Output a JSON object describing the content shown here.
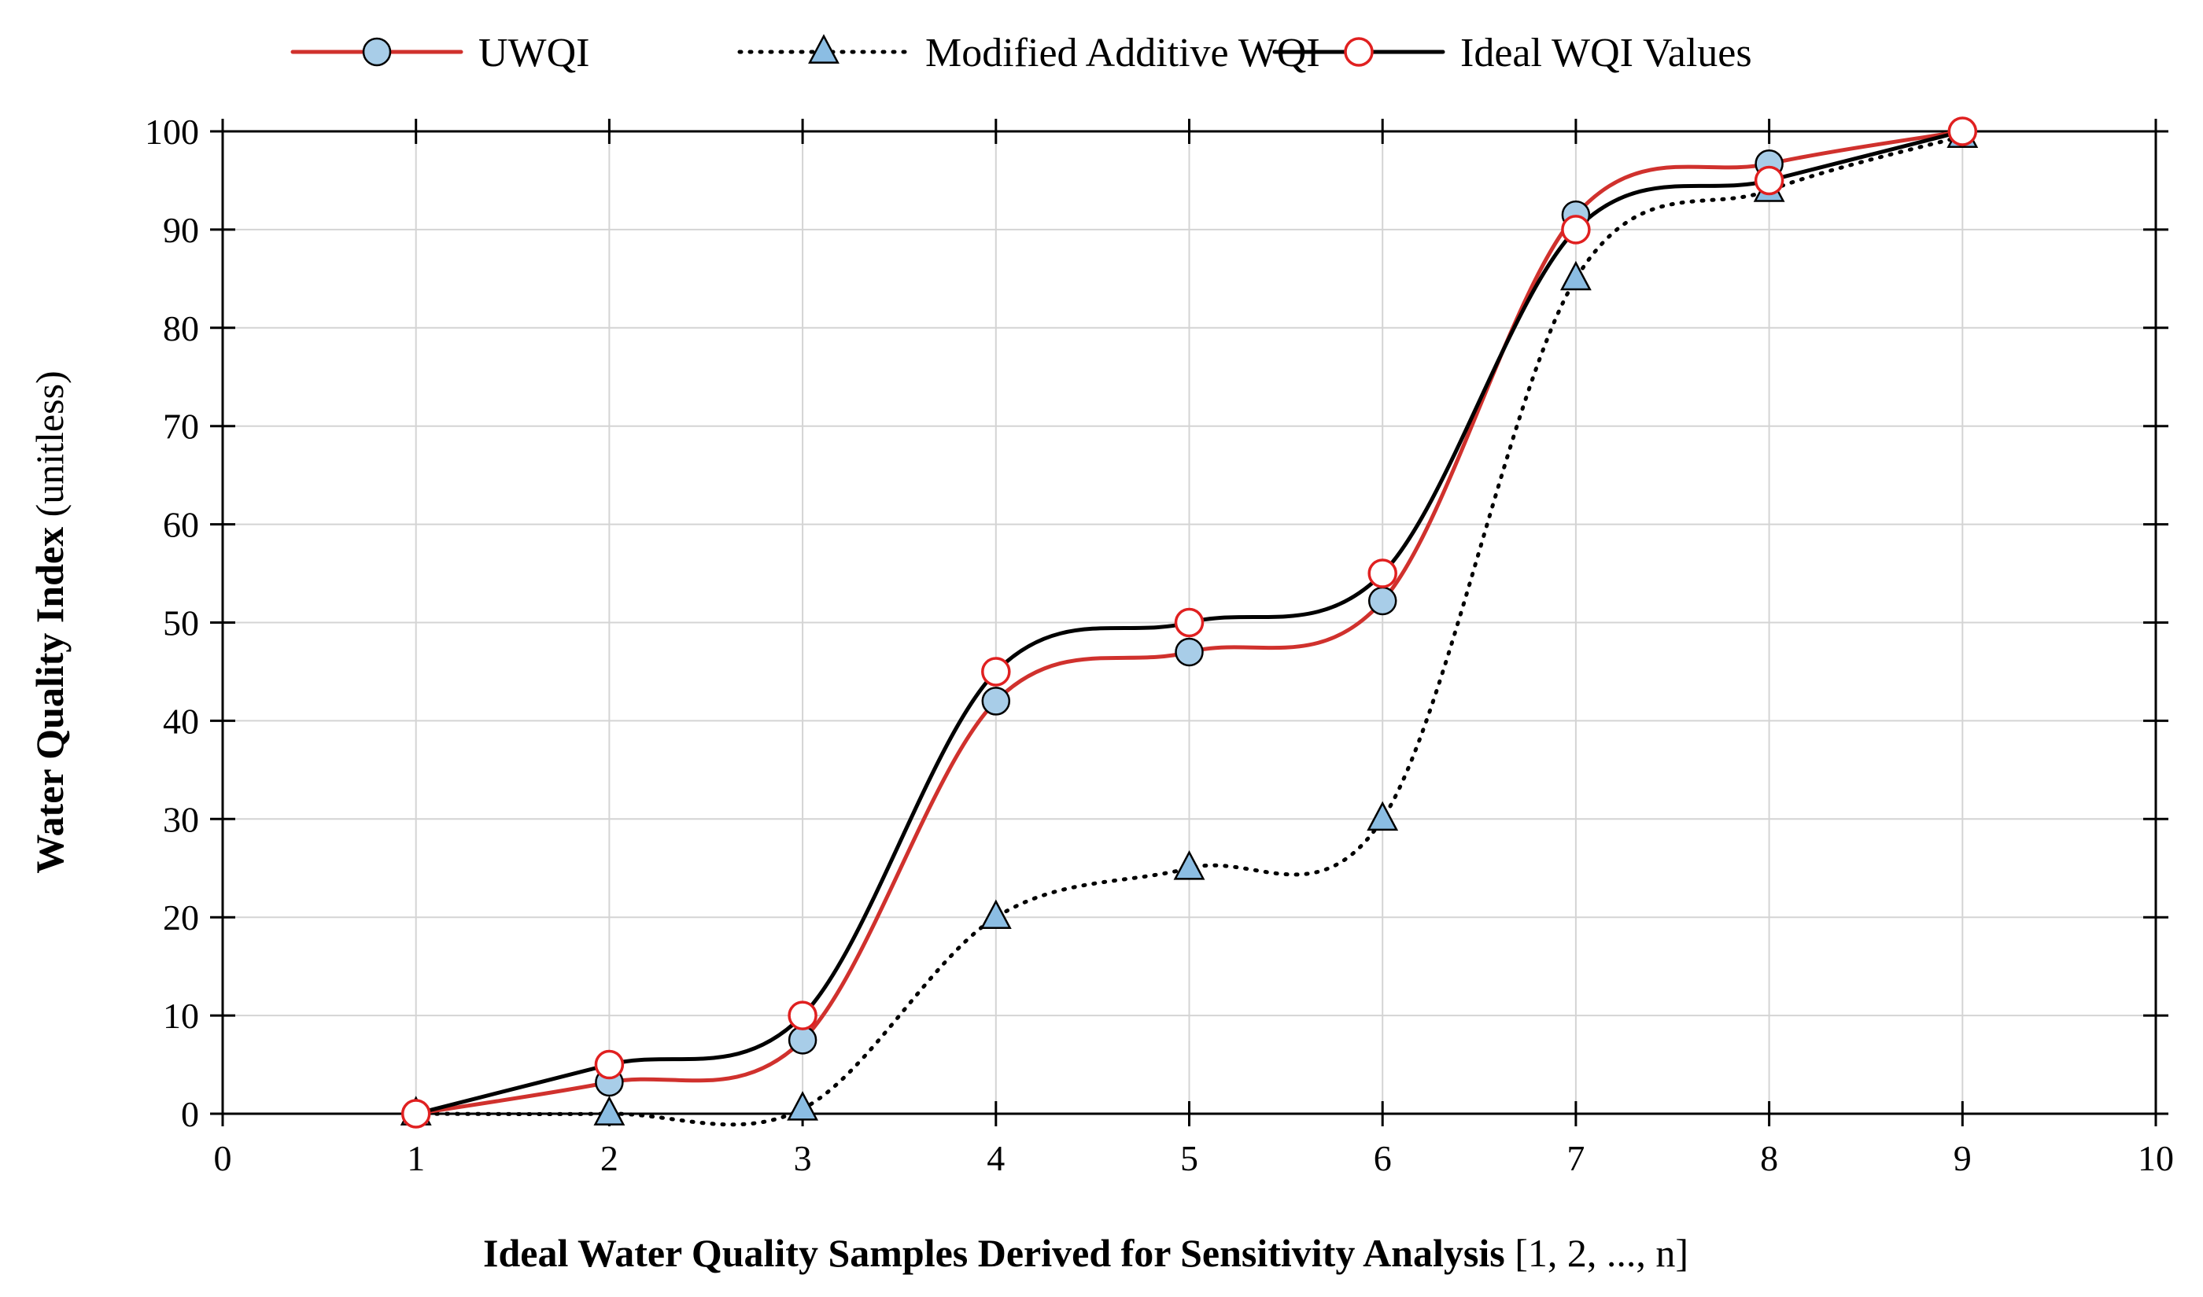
{
  "chart_data": {
    "type": "line",
    "title": "",
    "xlabel_bold": "Ideal Water Quality Samples Derived for Sensitivity Analysis",
    "xlabel_normal": " [1, 2, ..., n]",
    "ylabel_bold": "Water Quality Index",
    "ylabel_normal": " (unitless)",
    "xlim": [
      0,
      10
    ],
    "ylim": [
      0,
      100
    ],
    "x_ticks": [
      0,
      1,
      2,
      3,
      4,
      5,
      6,
      7,
      8,
      9,
      10
    ],
    "y_ticks": [
      0,
      10,
      20,
      30,
      40,
      50,
      60,
      70,
      80,
      90,
      100
    ],
    "grid": true,
    "legend_position": "top",
    "x": [
      1,
      2,
      3,
      4,
      5,
      6,
      7,
      8,
      9
    ],
    "series": [
      {
        "name": "UWQI",
        "line_style": "solid",
        "line_color": "#d0312d",
        "marker": "circle",
        "marker_fill": "#a8cde8",
        "marker_stroke": "#000000",
        "values": [
          0,
          3.2,
          7.5,
          42,
          47,
          52.2,
          91.5,
          96.7,
          100
        ]
      },
      {
        "name": "Modified Additive WQI",
        "line_style": "dotted",
        "line_color": "#000000",
        "marker": "triangle",
        "marker_fill": "#8bbde3",
        "marker_stroke": "#000000",
        "values": [
          0,
          0,
          0.5,
          20,
          25,
          30,
          85,
          94,
          99.5
        ]
      },
      {
        "name": "Ideal WQI Values",
        "line_style": "solid",
        "line_color": "#000000",
        "marker": "circle",
        "marker_fill": "#ffffff",
        "marker_stroke": "#e02020",
        "values": [
          0,
          5,
          10,
          45,
          50,
          55,
          90,
          95,
          100
        ]
      }
    ]
  }
}
